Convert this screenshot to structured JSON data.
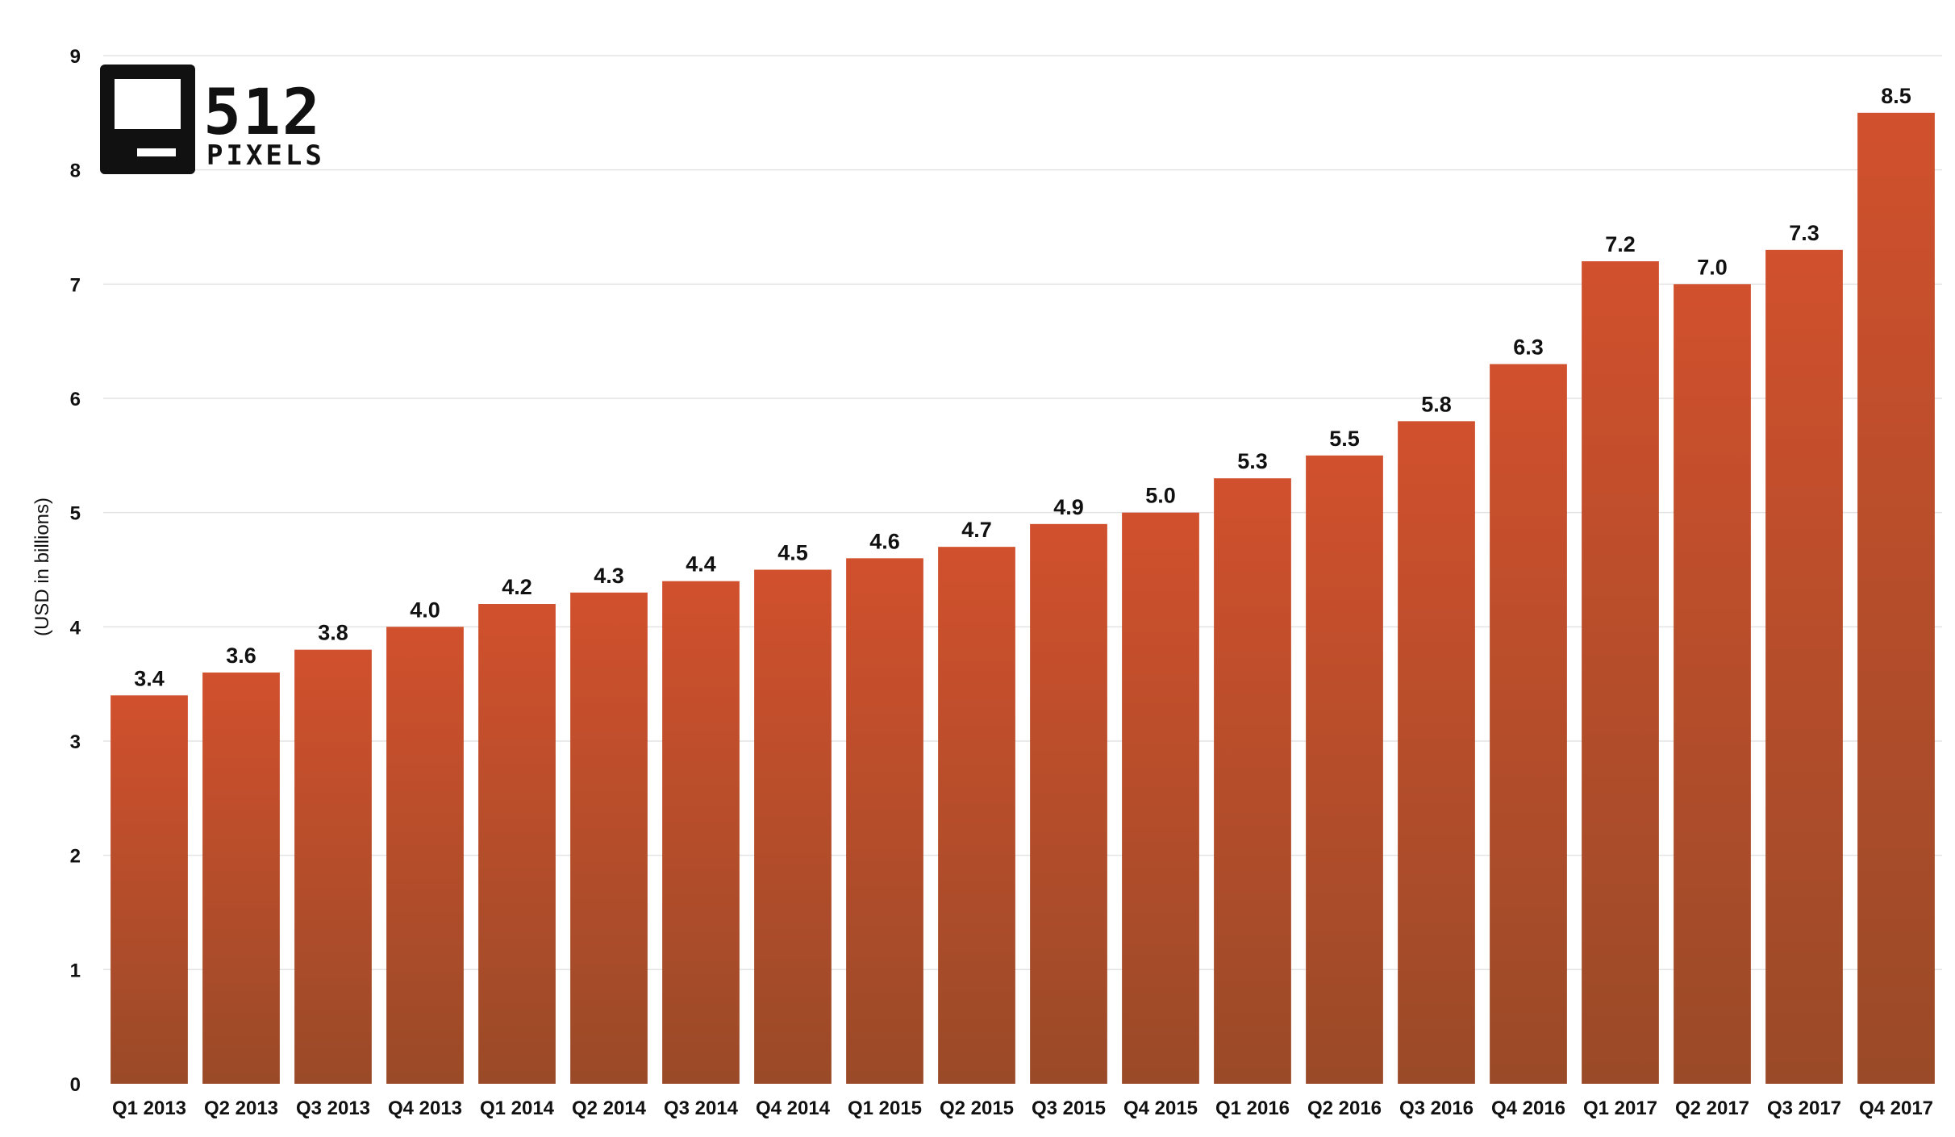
{
  "colors": {
    "bar_top": "#d1502d",
    "bar_bottom": "#9a4a28",
    "grid": "#e3e3e3",
    "text": "#111111",
    "logo": "#111111"
  },
  "logo": {
    "big": "512",
    "small": "PIXELS"
  },
  "chart_data": {
    "type": "bar",
    "title": "",
    "xlabel": "",
    "ylabel": "(USD in billions)",
    "ylim": [
      0,
      9
    ],
    "yticks": [
      0,
      1,
      2,
      3,
      4,
      5,
      6,
      7,
      8,
      9
    ],
    "grid": true,
    "legend": "none",
    "categories": [
      "Q1 2013",
      "Q2 2013",
      "Q3 2013",
      "Q4 2013",
      "Q1 2014",
      "Q2 2014",
      "Q3 2014",
      "Q4 2014",
      "Q1 2015",
      "Q2 2015",
      "Q3 2015",
      "Q4 2015",
      "Q1 2016",
      "Q2 2016",
      "Q3 2016",
      "Q4 2016",
      "Q1 2017",
      "Q2 2017",
      "Q3 2017",
      "Q4 2017"
    ],
    "values": [
      3.4,
      3.6,
      3.8,
      4.0,
      4.2,
      4.3,
      4.4,
      4.5,
      4.6,
      4.7,
      4.9,
      5.0,
      5.3,
      5.5,
      5.8,
      6.3,
      7.2,
      7.0,
      7.3,
      8.5
    ],
    "value_labels": [
      "3.4",
      "3.6",
      "3.8",
      "4.0",
      "4.2",
      "4.3",
      "4.4",
      "4.5",
      "4.6",
      "4.7",
      "4.9",
      "5.0",
      "5.3",
      "5.5",
      "5.8",
      "6.3",
      "7.2",
      "7.0",
      "7.3",
      "8.5"
    ]
  }
}
